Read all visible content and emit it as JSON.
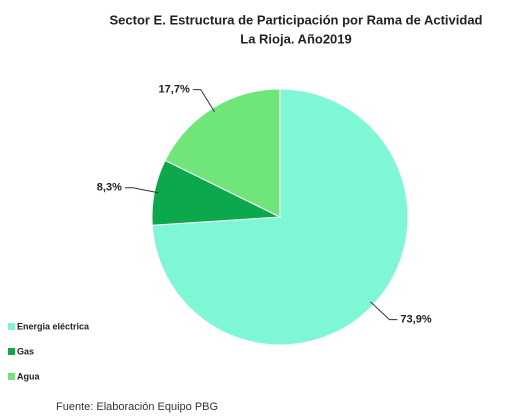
{
  "chart_data": {
    "type": "pie",
    "title": [
      "Sector E. Estructura de Participación por Rama de Actividad",
      "La Rioja. Año2019"
    ],
    "categories": [
      "Energia eléctrica",
      "Gas",
      "Agua"
    ],
    "values": [
      73.9,
      8.3,
      17.7
    ],
    "value_labels": [
      "73,9%",
      "8,3%",
      "17,7%"
    ],
    "colors": [
      "#7ef7d6",
      "#0ca84c",
      "#6fe57a"
    ],
    "legend": "bottom-left",
    "source": "Fuente: Elaboración Equipo PBG"
  }
}
